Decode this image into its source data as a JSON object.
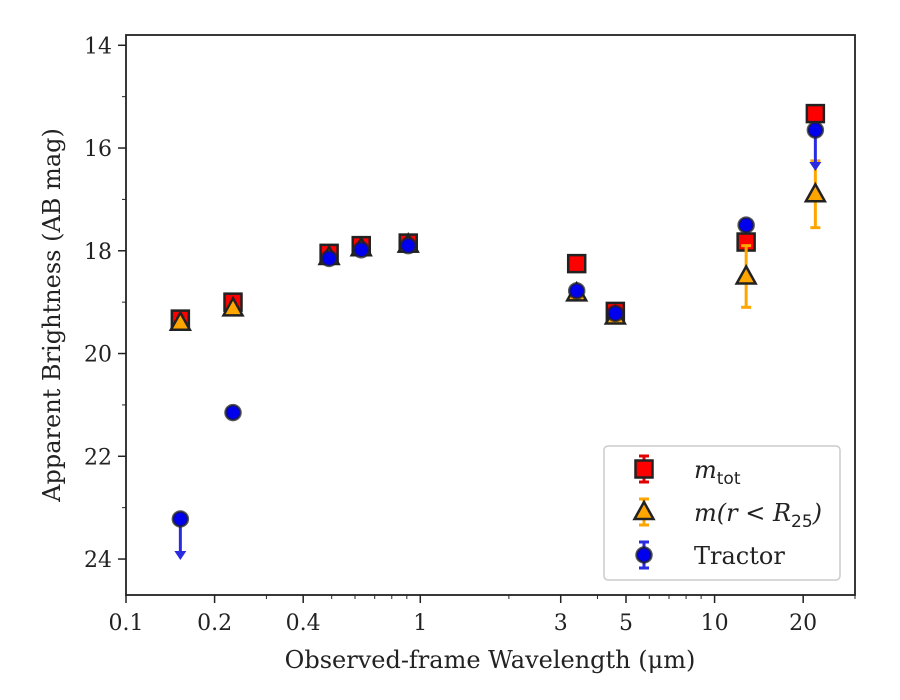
{
  "chart_data": {
    "type": "scatter",
    "xlabel": "Observed-frame Wavelength (μm)",
    "ylabel": "Apparent Brightness (AB mag)",
    "xscale": "log",
    "xlim": [
      0.1,
      30
    ],
    "ylim": [
      24.7,
      13.8
    ],
    "y_inverted": true,
    "x_ticks": [
      0.1,
      0.2,
      0.4,
      1,
      3,
      5,
      10,
      20
    ],
    "x_tick_labels": [
      "0.1",
      "0.2",
      "0.4",
      "1",
      "3",
      "5",
      "10",
      "20"
    ],
    "y_ticks": [
      14,
      16,
      18,
      20,
      22,
      24
    ],
    "y_tick_labels": [
      "14",
      "16",
      "18",
      "20",
      "22",
      "24"
    ],
    "grid": false,
    "legend_position": "lower-right",
    "series": [
      {
        "name": "m_tot",
        "legend": {
          "main": "m",
          "sub": "tot",
          "suffix": ""
        },
        "marker": "square",
        "color": "#ff0000",
        "errcolor": "#e00000",
        "points": [
          {
            "x": 0.153,
            "y": 19.33,
            "err": 0.12
          },
          {
            "x": 0.231,
            "y": 19.0,
            "err": 0.1
          },
          {
            "x": 0.49,
            "y": 18.05,
            "err": 0.08
          },
          {
            "x": 0.63,
            "y": 17.9,
            "err": 0.08
          },
          {
            "x": 0.91,
            "y": 17.85,
            "err": 0.08
          },
          {
            "x": 3.4,
            "y": 18.25,
            "err": 0.05
          },
          {
            "x": 4.6,
            "y": 19.18,
            "err": 0.05
          },
          {
            "x": 12.8,
            "y": 17.83,
            "err": 0.05
          },
          {
            "x": 22.0,
            "y": 15.33,
            "err": 0.05
          }
        ]
      },
      {
        "name": "m(r<R_25)",
        "legend": {
          "main": "m(r < R",
          "sub": "25",
          "suffix": ")"
        },
        "marker": "triangle",
        "color": "#ffa500",
        "errcolor": "#ffa500",
        "points": [
          {
            "x": 0.153,
            "y": 19.4,
            "err": 0.06
          },
          {
            "x": 0.231,
            "y": 19.12,
            "err": 0.06
          },
          {
            "x": 0.49,
            "y": 18.12,
            "err": 0.05
          },
          {
            "x": 0.63,
            "y": 17.95,
            "err": 0.05
          },
          {
            "x": 0.91,
            "y": 17.88,
            "err": 0.05
          },
          {
            "x": 3.4,
            "y": 18.83,
            "err": 0.05
          },
          {
            "x": 4.6,
            "y": 19.28,
            "err": 0.05
          },
          {
            "x": 12.8,
            "y": 18.5,
            "err": 0.6
          },
          {
            "x": 22.0,
            "y": 16.9,
            "err": 0.65
          }
        ]
      },
      {
        "name": "Tractor",
        "legend": {
          "main": "Tractor",
          "sub": "",
          "suffix": ""
        },
        "marker": "circle",
        "color": "#0000ee",
        "errcolor": "#2a2ae0",
        "points": [
          {
            "x": 0.153,
            "y": 23.22,
            "err": 0.0,
            "upper_limit": true
          },
          {
            "x": 0.231,
            "y": 21.15,
            "err": 0.05
          },
          {
            "x": 0.49,
            "y": 18.15,
            "err": 0.05
          },
          {
            "x": 0.63,
            "y": 17.98,
            "err": 0.05
          },
          {
            "x": 0.91,
            "y": 17.9,
            "err": 0.05
          },
          {
            "x": 3.4,
            "y": 18.78,
            "err": 0.05
          },
          {
            "x": 4.6,
            "y": 19.22,
            "err": 0.05
          },
          {
            "x": 12.8,
            "y": 17.5,
            "err": 0.05
          },
          {
            "x": 22.0,
            "y": 15.65,
            "err": 0.0,
            "upper_limit": true
          }
        ]
      }
    ]
  }
}
